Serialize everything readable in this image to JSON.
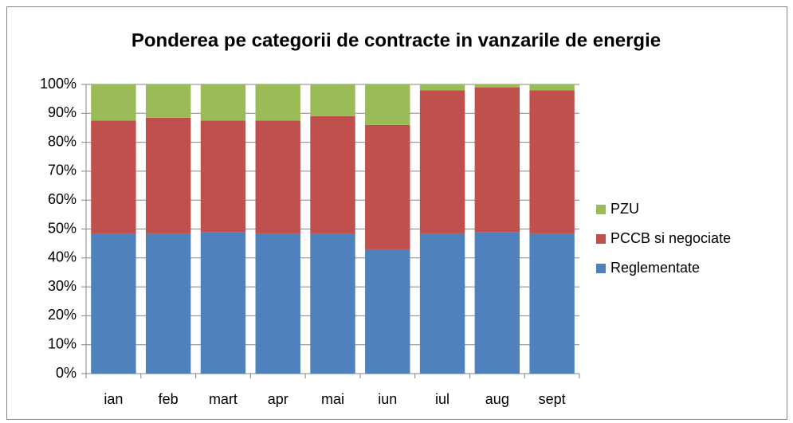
{
  "chart_data": {
    "type": "stacked_bar_100",
    "title": "Ponderea pe categorii de contracte in vanzarile de energie",
    "categories": [
      "ian",
      "feb",
      "mart",
      "apr",
      "mai",
      "iun",
      "iul",
      "aug",
      "sept"
    ],
    "series": [
      {
        "name": "Reglementate",
        "color": "#4f81bd",
        "values": [
          48.5,
          48.5,
          49,
          48.5,
          48.5,
          43,
          48.5,
          49,
          48.5
        ]
      },
      {
        "name": "PCCB si negociate",
        "color": "#c0504d",
        "values": [
          39,
          40,
          38.5,
          39,
          40.5,
          43,
          49.5,
          50,
          49.5
        ]
      },
      {
        "name": "PZU",
        "color": "#9bbb59",
        "values": [
          12.5,
          11.5,
          12.5,
          12.5,
          11,
          14,
          2,
          1,
          2
        ]
      }
    ],
    "ylim": [
      0,
      100
    ],
    "yticks": [
      {
        "value": 0,
        "label": "0%"
      },
      {
        "value": 10,
        "label": "10%"
      },
      {
        "value": 20,
        "label": "20%"
      },
      {
        "value": 30,
        "label": "30%"
      },
      {
        "value": 40,
        "label": "40%"
      },
      {
        "value": 50,
        "label": "50%"
      },
      {
        "value": 60,
        "label": "60%"
      },
      {
        "value": 70,
        "label": "70%"
      },
      {
        "value": 80,
        "label": "80%"
      },
      {
        "value": 90,
        "label": "90%"
      },
      {
        "value": 100,
        "label": "100%"
      }
    ],
    "grid": true,
    "legend": "right"
  }
}
